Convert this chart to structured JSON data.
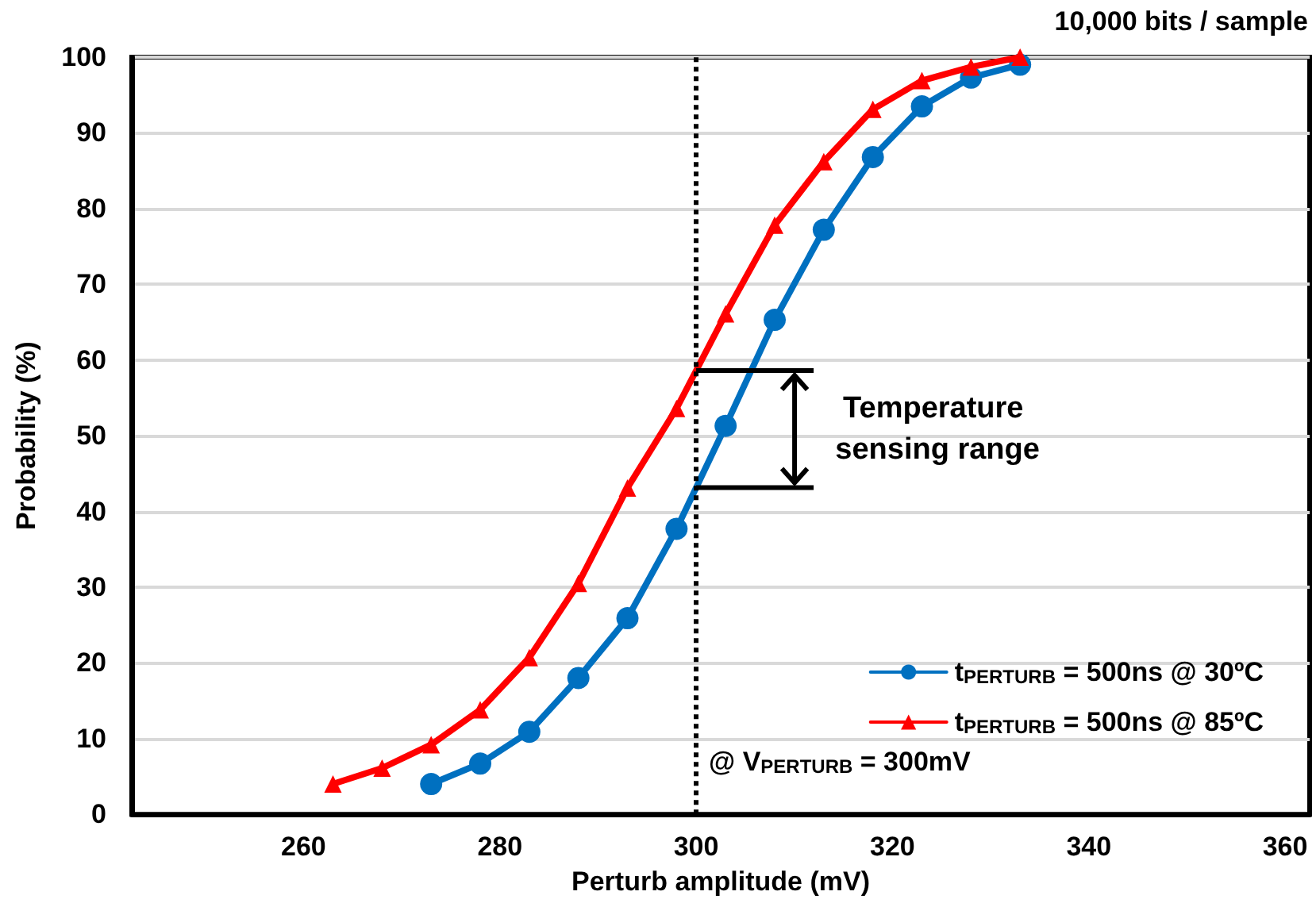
{
  "chart_data": {
    "type": "line",
    "title": "10,000 bits / sample",
    "xlabel": "Perturb amplitude (mV)",
    "ylabel": "Probability (%)",
    "xlim": [
      242.5,
      362.5
    ],
    "xticks": [
      260,
      280,
      300,
      320,
      340,
      360
    ],
    "ylim": [
      0,
      100
    ],
    "yticks": [
      0,
      10,
      20,
      30,
      40,
      50,
      60,
      70,
      80,
      90,
      100
    ],
    "grid": "y",
    "legend": "bottom right",
    "line_style": "solid",
    "series": [
      {
        "name": "t$_{PERTURB}$ = 500ns @ 30ºC",
        "color": "#0070c0",
        "marker": "circle",
        "x": [
          273,
          278,
          283,
          288,
          293,
          298,
          303,
          308,
          313,
          318,
          323,
          328,
          333
        ],
        "values": [
          4.0,
          6.7,
          10.9,
          18.0,
          25.9,
          37.7,
          51.3,
          65.3,
          77.2,
          86.8,
          93.5,
          97.3,
          99.0
        ]
      },
      {
        "name": "t$_{PERTURB}$ = 500ns @ 85ºC",
        "color": "#ff0000",
        "marker": "triangle",
        "x": [
          263,
          268,
          273,
          278,
          283,
          288,
          293,
          298,
          303,
          308,
          313,
          318,
          323,
          328,
          333
        ],
        "values": [
          4.0,
          6.1,
          9.2,
          13.8,
          20.7,
          30.5,
          43.1,
          53.6,
          66.1,
          77.8,
          86.2,
          93.1,
          96.9,
          98.7,
          100
        ]
      }
    ],
    "ref_lines": [
      {
        "axis": "x",
        "value": 300,
        "label": "@ V$_{PERTURB}$ = 300mV",
        "color": "#000000",
        "line_style": "dotted"
      }
    ],
    "annotations": [
      {
        "text": "Temperature sensing range",
        "x": 300,
        "y": 58.6
      }
    ]
  }
}
